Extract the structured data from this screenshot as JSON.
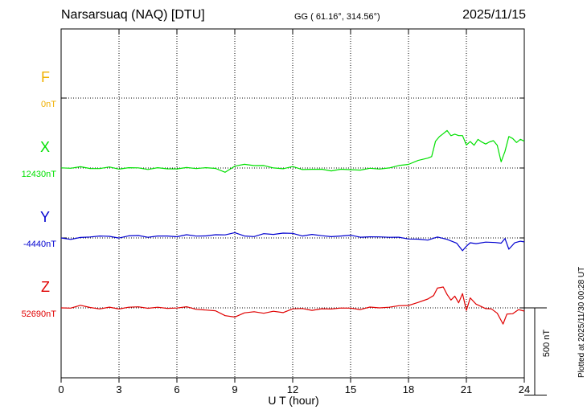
{
  "header": {
    "station": "Narsarsuaq (NAQ)  [DTU]",
    "coords": "GG ( 61.16°, 314.56°)",
    "date": "2025/11/15",
    "plotted": "Plotted at 2025/11/30 00:28 UT"
  },
  "colors": {
    "F": "#f0b000",
    "X": "#00e000",
    "Y": "#0000d0",
    "Z": "#e00000",
    "axis": "#000000",
    "grid": "#000000"
  },
  "chart_data": {
    "type": "line",
    "xlabel": "U T (hour)",
    "xlim": [
      0,
      24
    ],
    "xticks": [
      0,
      3,
      6,
      9,
      12,
      15,
      18,
      21,
      24
    ],
    "scale_bar_label": "500 nT",
    "scale_bar_nT": 500,
    "y_units": "nT",
    "y_span_nT": 2000,
    "series": [
      {
        "name": "F",
        "baseline_label": "0nT",
        "baseline_nT": 0,
        "points": []
      },
      {
        "name": "X",
        "baseline_label": "12430nT",
        "baseline_nT": 12430,
        "points": [
          [
            0,
            12431
          ],
          [
            0.5,
            12432
          ],
          [
            1,
            12433
          ],
          [
            1.5,
            12430
          ],
          [
            2,
            12428
          ],
          [
            2.5,
            12432
          ],
          [
            3,
            12428
          ],
          [
            3.5,
            12430
          ],
          [
            4,
            12429
          ],
          [
            4.5,
            12426
          ],
          [
            5,
            12428
          ],
          [
            5.5,
            12426
          ],
          [
            6,
            12428
          ],
          [
            6.5,
            12428
          ],
          [
            7,
            12430
          ],
          [
            7.5,
            12432
          ],
          [
            8,
            12424
          ],
          [
            8.5,
            12410
          ],
          [
            9,
            12438
          ],
          [
            9.5,
            12450
          ],
          [
            10,
            12448
          ],
          [
            10.5,
            12440
          ],
          [
            11,
            12432
          ],
          [
            11.5,
            12428
          ],
          [
            12,
            12434
          ],
          [
            12.5,
            12425
          ],
          [
            13,
            12422
          ],
          [
            13.5,
            12420
          ],
          [
            14,
            12418
          ],
          [
            14.5,
            12420
          ],
          [
            15,
            12420
          ],
          [
            15.5,
            12422
          ],
          [
            16,
            12424
          ],
          [
            16.5,
            12426
          ],
          [
            17,
            12432
          ],
          [
            17.5,
            12440
          ],
          [
            18,
            12455
          ],
          [
            18.5,
            12472
          ],
          [
            19,
            12484
          ],
          [
            19.2,
            12500
          ],
          [
            19.4,
            12580
          ],
          [
            19.6,
            12610
          ],
          [
            19.8,
            12630
          ],
          [
            20,
            12640
          ],
          [
            20.2,
            12618
          ],
          [
            20.4,
            12625
          ],
          [
            20.6,
            12612
          ],
          [
            20.8,
            12620
          ],
          [
            21,
            12560
          ],
          [
            21.2,
            12580
          ],
          [
            21.4,
            12565
          ],
          [
            21.6,
            12590
          ],
          [
            21.8,
            12580
          ],
          [
            22,
            12570
          ],
          [
            22.2,
            12575
          ],
          [
            22.4,
            12590
          ],
          [
            22.6,
            12560
          ],
          [
            22.8,
            12462
          ],
          [
            23,
            12530
          ],
          [
            23.2,
            12608
          ],
          [
            23.4,
            12598
          ],
          [
            23.6,
            12580
          ],
          [
            23.8,
            12590
          ],
          [
            24,
            12585
          ]
        ]
      },
      {
        "name": "Y",
        "baseline_label": "-4440nT",
        "baseline_nT": -4440,
        "points": [
          [
            0,
            -4440
          ],
          [
            0.5,
            -4445
          ],
          [
            1,
            -4442
          ],
          [
            1.5,
            -4432
          ],
          [
            2,
            -4428
          ],
          [
            2.5,
            -4435
          ],
          [
            3,
            -4436
          ],
          [
            3.5,
            -4430
          ],
          [
            4,
            -4428
          ],
          [
            4.5,
            -4432
          ],
          [
            5,
            -4433
          ],
          [
            5.5,
            -4428
          ],
          [
            6,
            -4430
          ],
          [
            6.5,
            -4426
          ],
          [
            7,
            -4426
          ],
          [
            7.5,
            -4428
          ],
          [
            8,
            -4425
          ],
          [
            8.5,
            -4418
          ],
          [
            9,
            -4412
          ],
          [
            9.5,
            -4430
          ],
          [
            10,
            -4428
          ],
          [
            10.5,
            -4420
          ],
          [
            11,
            -4418
          ],
          [
            11.5,
            -4410
          ],
          [
            12,
            -4418
          ],
          [
            12.5,
            -4425
          ],
          [
            13,
            -4420
          ],
          [
            13.5,
            -4430
          ],
          [
            14,
            -4428
          ],
          [
            14.5,
            -4432
          ],
          [
            15,
            -4425
          ],
          [
            15.5,
            -4432
          ],
          [
            16,
            -4438
          ],
          [
            16.5,
            -4432
          ],
          [
            17,
            -4435
          ],
          [
            17.5,
            -4440
          ],
          [
            18,
            -4442
          ],
          [
            18.5,
            -4448
          ],
          [
            19,
            -4455
          ],
          [
            19.5,
            -4430
          ],
          [
            20,
            -4452
          ],
          [
            20.5,
            -4470
          ],
          [
            20.8,
            -4510
          ],
          [
            21,
            -4492
          ],
          [
            21.2,
            -4465
          ],
          [
            21.5,
            -4472
          ],
          [
            22,
            -4468
          ],
          [
            22.5,
            -4462
          ],
          [
            22.8,
            -4472
          ],
          [
            23,
            -4445
          ],
          [
            23.2,
            -4500
          ],
          [
            23.5,
            -4472
          ],
          [
            23.8,
            -4458
          ],
          [
            24,
            -4460
          ]
        ]
      },
      {
        "name": "Z",
        "baseline_label": "52690nT",
        "baseline_nT": 52690,
        "points": [
          [
            0,
            52690
          ],
          [
            0.5,
            52692
          ],
          [
            1,
            52700
          ],
          [
            1.5,
            52695
          ],
          [
            2,
            52685
          ],
          [
            2.5,
            52690
          ],
          [
            3,
            52688
          ],
          [
            3.5,
            52692
          ],
          [
            4,
            52694
          ],
          [
            4.5,
            52692
          ],
          [
            5,
            52690
          ],
          [
            5.5,
            52688
          ],
          [
            6,
            52692
          ],
          [
            6.5,
            52692
          ],
          [
            7,
            52685
          ],
          [
            7.5,
            52678
          ],
          [
            8,
            52670
          ],
          [
            8.5,
            52650
          ],
          [
            9,
            52635
          ],
          [
            9.5,
            52660
          ],
          [
            10,
            52672
          ],
          [
            10.5,
            52655
          ],
          [
            11,
            52672
          ],
          [
            11.5,
            52665
          ],
          [
            12,
            52680
          ],
          [
            12.5,
            52690
          ],
          [
            13,
            52675
          ],
          [
            13.5,
            52682
          ],
          [
            14,
            52688
          ],
          [
            14.5,
            52686
          ],
          [
            15,
            52688
          ],
          [
            15.5,
            52684
          ],
          [
            16,
            52690
          ],
          [
            16.5,
            52692
          ],
          [
            17,
            52695
          ],
          [
            17.5,
            52698
          ],
          [
            18,
            52708
          ],
          [
            18.5,
            52720
          ],
          [
            19,
            52738
          ],
          [
            19.3,
            52765
          ],
          [
            19.5,
            52800
          ],
          [
            19.8,
            52810
          ],
          [
            20,
            52770
          ],
          [
            20.2,
            52730
          ],
          [
            20.4,
            52760
          ],
          [
            20.6,
            52720
          ],
          [
            20.8,
            52768
          ],
          [
            21,
            52680
          ],
          [
            21.2,
            52745
          ],
          [
            21.5,
            52710
          ],
          [
            22,
            52690
          ],
          [
            22.3,
            52680
          ],
          [
            22.6,
            52660
          ],
          [
            22.9,
            52600
          ],
          [
            23.1,
            52650
          ],
          [
            23.4,
            52660
          ],
          [
            23.7,
            52680
          ],
          [
            24,
            52668
          ]
        ]
      }
    ]
  }
}
